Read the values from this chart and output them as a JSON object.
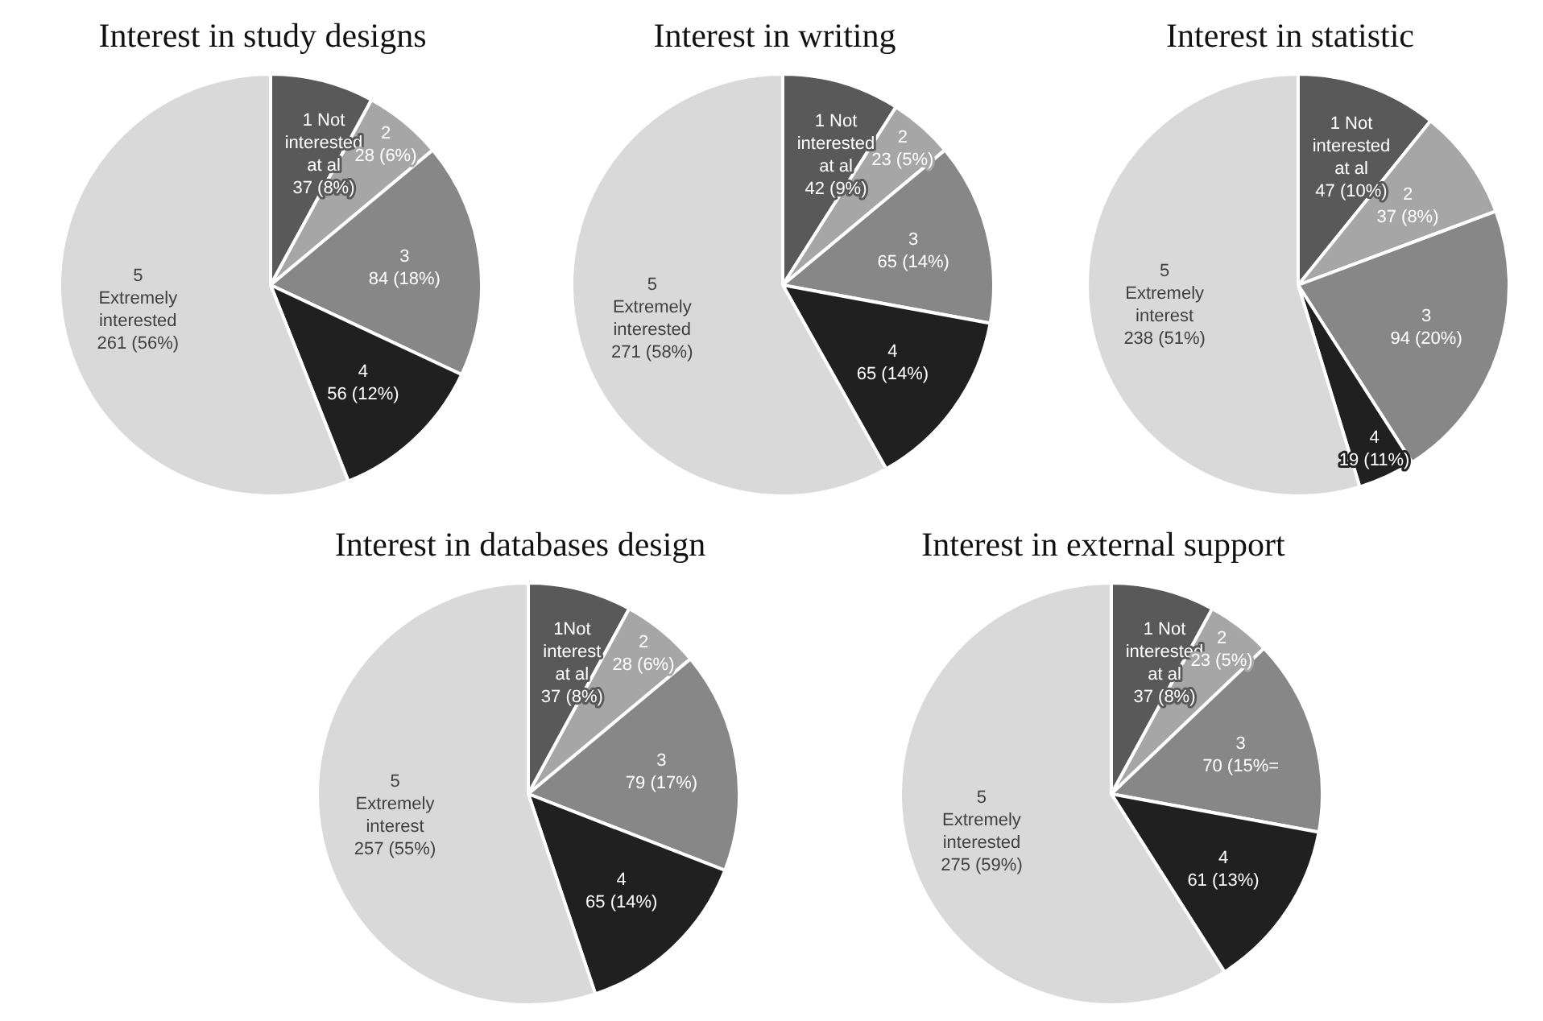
{
  "chart_data": [
    {
      "type": "pie",
      "title": "Interest in study designs",
      "categories": [
        "1 Not interested at al",
        "2",
        "3",
        "4",
        "5 Extremely interested"
      ],
      "values": [
        37,
        28,
        84,
        56,
        261
      ],
      "value_labels": [
        "37 (8%)",
        "28 (6%)",
        "84 (18%)",
        "56 (12%)",
        "261 (56%)"
      ],
      "colors": [
        "#595959",
        "#a6a6a6",
        "#878787",
        "#202020",
        "#d9d9d9"
      ]
    },
    {
      "type": "pie",
      "title": "Interest in writing",
      "categories": [
        "1 Not interested at al",
        "2",
        "3",
        "4",
        "5 Extremely interested"
      ],
      "values": [
        42,
        23,
        65,
        65,
        271
      ],
      "value_labels": [
        "42 (9%)",
        "23 (5%)",
        "65 (14%)",
        "65 (14%)",
        "271 (58%)"
      ],
      "colors": [
        "#595959",
        "#a6a6a6",
        "#878787",
        "#202020",
        "#d9d9d9"
      ]
    },
    {
      "type": "pie",
      "title": "Interest in statistic",
      "categories": [
        "1 Not interested at al",
        "2",
        "3",
        "4",
        "5 Extremely interest"
      ],
      "values": [
        47,
        37,
        94,
        19,
        238
      ],
      "value_labels": [
        "47 (10%)",
        "37 (8%)",
        "94 (20%)",
        "19 (11%)",
        "238 (51%)"
      ],
      "colors": [
        "#595959",
        "#a6a6a6",
        "#878787",
        "#202020",
        "#d9d9d9"
      ]
    },
    {
      "type": "pie",
      "title": "Interest in databases design",
      "categories": [
        "1Not interest at al",
        "2",
        "3",
        "4",
        "5 Extremely interest"
      ],
      "values": [
        37,
        28,
        79,
        65,
        257
      ],
      "value_labels": [
        "37 (8%)",
        "28 (6%)",
        "79 (17%)",
        "65 (14%)",
        "257 (55%)"
      ],
      "colors": [
        "#595959",
        "#a6a6a6",
        "#878787",
        "#202020",
        "#d9d9d9"
      ]
    },
    {
      "type": "pie",
      "title": "Interest in external support",
      "categories": [
        "1 Not interested at al",
        "2",
        "3",
        "4",
        "5 Extremely interested"
      ],
      "values": [
        37,
        23,
        70,
        61,
        275
      ],
      "value_labels": [
        "37 (8%)",
        "23 (5%)",
        "70 (15%=",
        "61 (13%)",
        "275 (59%)"
      ],
      "colors": [
        "#595959",
        "#a6a6a6",
        "#878787",
        "#202020",
        "#d9d9d9"
      ]
    }
  ]
}
